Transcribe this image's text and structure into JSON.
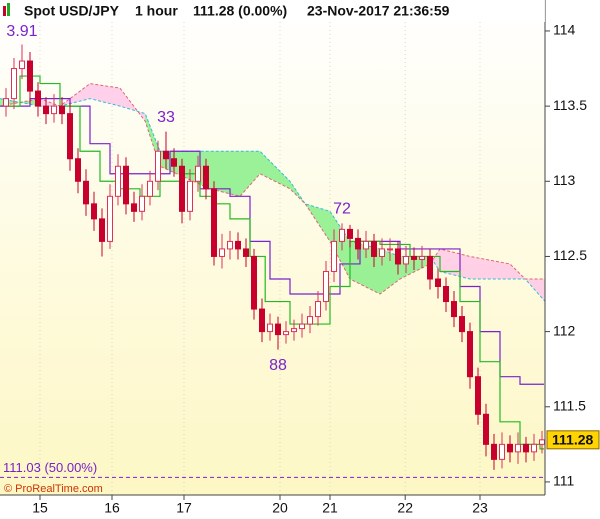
{
  "chart_data": {
    "type": "candlestick",
    "title": "Spot USD/JPY",
    "timeframe": "1 hour",
    "last_quote": "111.28 (0.00%)",
    "timestamp": "23-Nov-2017 21:36:59",
    "copyright": "© ProRealTime.com",
    "last_price": 111.28,
    "ylim": [
      110.913,
      114.206
    ],
    "yticks": [
      114,
      113.5,
      113,
      112.5,
      112,
      111.5,
      111
    ],
    "xlim": [
      -0.75,
      68.25
    ],
    "xticks": [
      {
        "value": 4.25,
        "label": "15"
      },
      {
        "value": 13.25,
        "label": "16"
      },
      {
        "value": 22.25,
        "label": "17"
      },
      {
        "value": 34.25,
        "label": "20"
      },
      {
        "value": 40.5,
        "label": "21"
      },
      {
        "value": 49.9,
        "label": "22"
      },
      {
        "value": 59.25,
        "label": "23"
      }
    ],
    "up_color": "#e0305a",
    "down_color": "#c8002e",
    "open": [
      113.5,
      113.55,
      113.75,
      113.8,
      113.6,
      113.5,
      113.45,
      113.5,
      113.45,
      113.15,
      113.0,
      112.85,
      112.75,
      112.6,
      112.9,
      113.1,
      112.85,
      112.8,
      112.9,
      113.0,
      113.2,
      113.15,
      113.1,
      112.8,
      113.0,
      113.1,
      112.95,
      112.5,
      112.55,
      112.6,
      112.55,
      112.5,
      112.15,
      112.0,
      112.05,
      111.98,
      112.0,
      112.02,
      112.05,
      112.1,
      112.2,
      112.4,
      112.6,
      112.68,
      112.62,
      112.55,
      112.6,
      112.5,
      112.55,
      112.55,
      112.45,
      112.5,
      112.48,
      112.5,
      112.35,
      112.3,
      112.2,
      112.1,
      112.0,
      111.7,
      111.45,
      111.25,
      111.15,
      111.25,
      111.2,
      111.25,
      111.2,
      111.25
    ],
    "high": [
      113.62,
      113.82,
      113.91,
      113.86,
      113.66,
      113.56,
      113.58,
      113.56,
      113.52,
      113.22,
      113.08,
      112.93,
      112.82,
      112.98,
      113.18,
      113.16,
      112.93,
      112.98,
      113.07,
      113.27,
      113.33,
      113.22,
      113.15,
      113.08,
      113.17,
      113.15,
      113.0,
      112.65,
      112.67,
      112.66,
      112.62,
      112.55,
      112.22,
      112.12,
      112.1,
      112.07,
      112.08,
      112.12,
      112.17,
      112.27,
      112.47,
      112.68,
      112.72,
      112.71,
      112.68,
      112.67,
      112.65,
      112.62,
      112.62,
      112.6,
      112.57,
      112.56,
      112.57,
      112.55,
      112.42,
      112.36,
      112.27,
      112.17,
      112.06,
      111.76,
      111.52,
      111.32,
      111.33,
      111.31,
      111.33,
      111.3,
      111.32,
      111.34
    ],
    "low": [
      113.43,
      113.48,
      113.68,
      113.52,
      113.43,
      113.38,
      113.39,
      113.38,
      113.07,
      112.92,
      112.77,
      112.67,
      112.5,
      112.55,
      112.84,
      112.78,
      112.73,
      112.74,
      112.84,
      112.94,
      113.08,
      113.03,
      112.72,
      112.74,
      112.93,
      112.88,
      112.44,
      112.42,
      112.48,
      112.48,
      112.43,
      112.08,
      111.93,
      111.94,
      111.88,
      111.92,
      111.94,
      111.96,
      111.99,
      112.04,
      112.14,
      112.33,
      112.54,
      112.56,
      112.48,
      112.49,
      112.43,
      112.44,
      112.47,
      112.38,
      112.39,
      112.41,
      112.42,
      112.28,
      112.22,
      112.13,
      112.03,
      111.93,
      111.62,
      111.38,
      111.17,
      111.08,
      111.09,
      111.13,
      111.12,
      111.13,
      111.14,
      111.19
    ],
    "close": [
      113.55,
      113.75,
      113.8,
      113.6,
      113.5,
      113.45,
      113.5,
      113.45,
      113.15,
      113.0,
      112.85,
      112.75,
      112.6,
      112.9,
      113.1,
      112.85,
      112.8,
      112.9,
      113.0,
      113.2,
      113.15,
      113.1,
      112.8,
      113.0,
      113.1,
      112.95,
      112.5,
      112.55,
      112.6,
      112.55,
      112.5,
      112.15,
      112.0,
      112.05,
      111.98,
      112.0,
      112.02,
      112.05,
      112.1,
      112.2,
      112.4,
      112.6,
      112.68,
      112.62,
      112.55,
      112.6,
      112.5,
      112.55,
      112.55,
      112.45,
      112.5,
      112.48,
      112.5,
      112.35,
      112.3,
      112.2,
      112.1,
      112.0,
      111.7,
      111.45,
      111.25,
      111.15,
      111.25,
      111.2,
      111.25,
      111.2,
      111.25,
      111.28
    ],
    "tenkan": {
      "color": "#22bb22",
      "x": [
        0,
        1.75,
        4.25,
        6.75,
        9.25,
        11.75,
        14.25,
        16.75,
        19.25,
        21.75,
        24.25,
        26.1,
        28,
        30.5,
        32.4,
        35.5,
        38,
        40.5,
        43,
        46.75,
        50.5,
        54.25,
        56.75,
        59.25,
        61.75,
        64.25,
        66.75
      ],
      "values": [
        113.5,
        113.7,
        113.65,
        113.5,
        113.2,
        113.0,
        112.95,
        112.9,
        113.0,
        113.05,
        112.9,
        112.85,
        112.75,
        112.5,
        112.2,
        112.05,
        112.05,
        112.3,
        112.6,
        112.58,
        112.5,
        112.4,
        112.2,
        111.8,
        111.4,
        111.25,
        111.22
      ]
    },
    "kijun": {
      "color": "#7a22cc",
      "x": [
        -0.75,
        3,
        8,
        10.5,
        13,
        16.75,
        20.5,
        24.25,
        28,
        30.5,
        33,
        35.5,
        39.25,
        41.75,
        44.25,
        49.25,
        53,
        56.75,
        59.25,
        61.75,
        64.25,
        66.75
      ],
      "values": [
        113.5,
        113.55,
        113.5,
        113.25,
        113.05,
        113.05,
        113.2,
        112.95,
        112.9,
        112.6,
        112.35,
        112.25,
        112.25,
        112.45,
        112.6,
        112.55,
        112.55,
        112.3,
        112.0,
        111.7,
        111.65,
        111.65
      ]
    },
    "cloud": {
      "bull_color": "#88ee88",
      "bear_color": "#ffc8e6",
      "x": [
        -0.75,
        4.25,
        6.75,
        10.5,
        14.25,
        17.4,
        19.25,
        25.5,
        29.25,
        31.75,
        35.5,
        37.4,
        40.5,
        43,
        46.75,
        49.25,
        53,
        54.25,
        58,
        63,
        64.9,
        67.4
      ],
      "span_a": [
        113.55,
        113.5,
        113.5,
        113.55,
        113.5,
        113.45,
        113.2,
        113.2,
        113.2,
        113.2,
        113.0,
        112.85,
        112.8,
        112.6,
        112.55,
        112.5,
        112.5,
        112.4,
        112.35,
        112.35,
        112.35,
        112.2
      ],
      "span_b": [
        113.5,
        113.55,
        113.5,
        113.65,
        113.62,
        113.4,
        113.1,
        112.95,
        112.9,
        113.05,
        112.95,
        112.85,
        112.6,
        112.35,
        112.25,
        112.35,
        112.45,
        112.55,
        112.5,
        112.45,
        112.35,
        112.35
      ]
    },
    "annotations": [
      {
        "label": "3.91",
        "value": 113.91,
        "x": 2,
        "position": "above"
      },
      {
        "label": "33",
        "value": 113.33,
        "x": 20,
        "position": "above"
      },
      {
        "label": "72",
        "value": 112.72,
        "x": 42,
        "position": "above"
      },
      {
        "label": "88",
        "value": 111.88,
        "x": 34,
        "position": "below"
      }
    ],
    "level": {
      "label": "111.03 (50.00%)",
      "value": 111.03,
      "color": "#7a22cc"
    }
  }
}
